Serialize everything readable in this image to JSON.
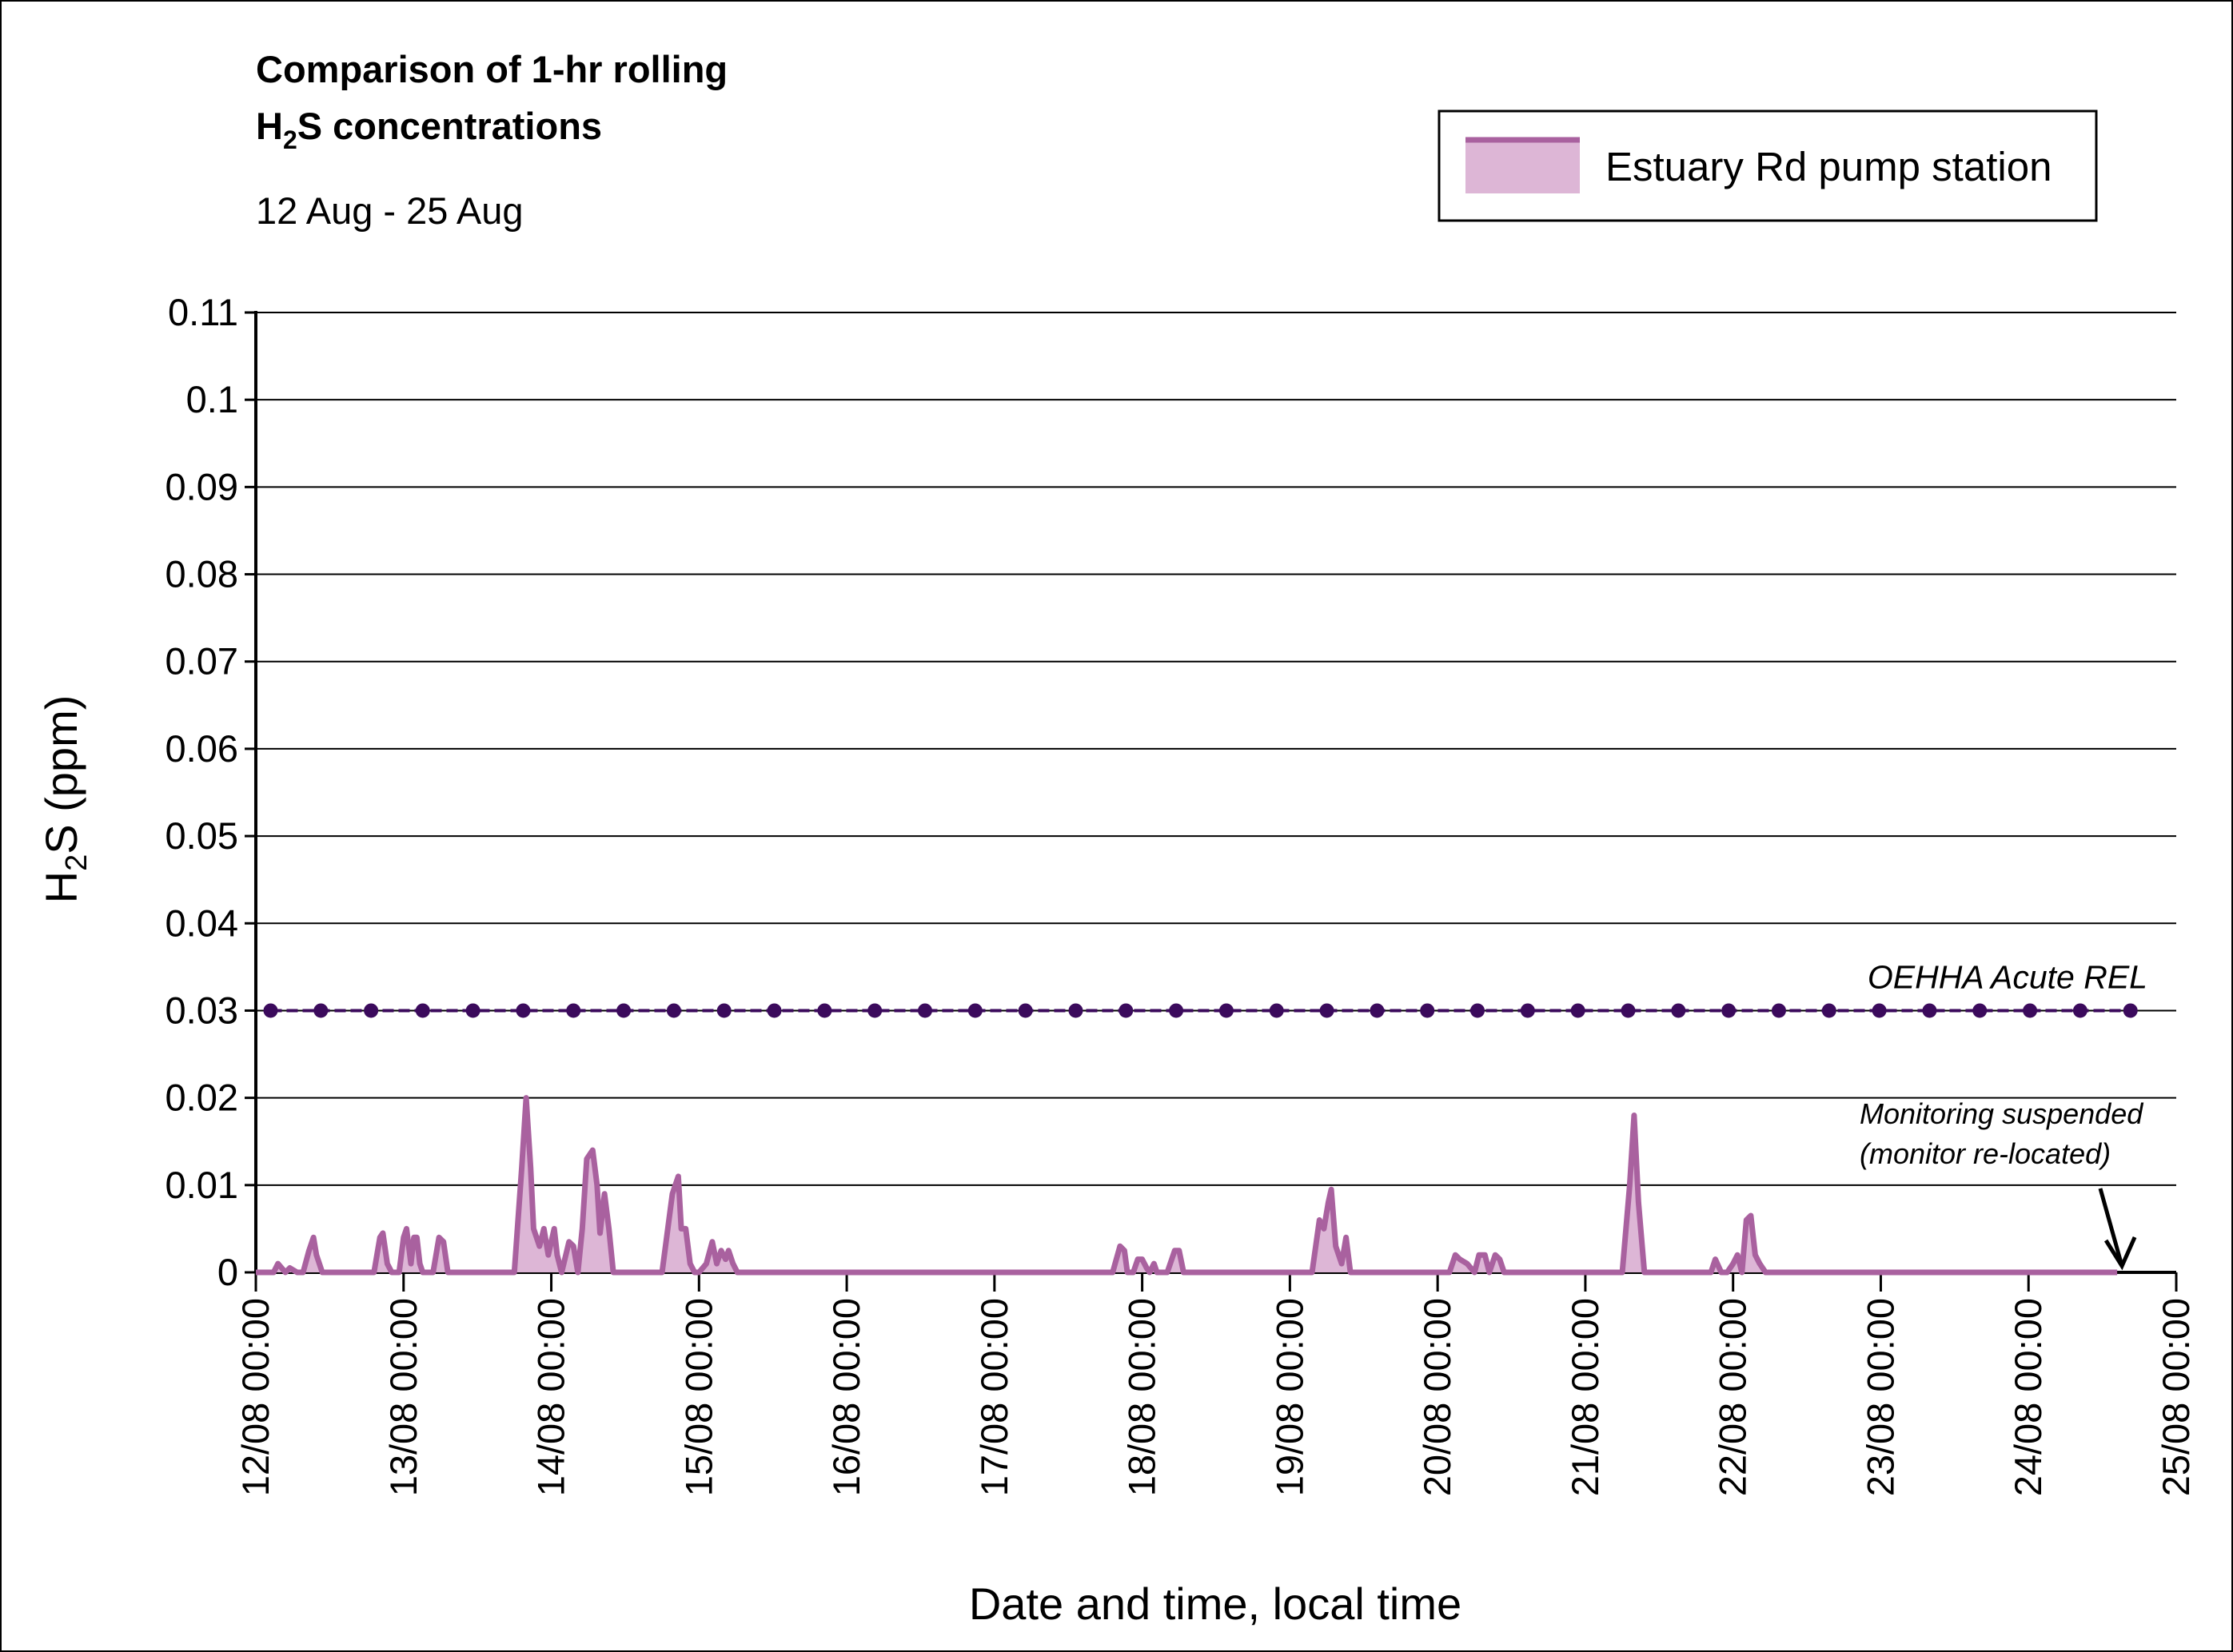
{
  "chart_data": {
    "type": "area",
    "title_line1": "Comparison of 1-hr rolling",
    "title_line2_prefix": "H",
    "title_line2_sub": "2",
    "title_line2_suffix": "S concentrations",
    "subtitle": "12 Aug - 25 Aug",
    "xlabel": "Date and time, local time",
    "ylabel_prefix": "H",
    "ylabel_sub": "2",
    "ylabel_suffix": "S (ppm)",
    "ylim": [
      0,
      0.11
    ],
    "yticks": [
      0,
      0.01,
      0.02,
      0.03,
      0.04,
      0.05,
      0.06,
      0.07,
      0.08,
      0.09,
      0.1,
      0.11
    ],
    "ytick_labels": [
      "0",
      "0.01",
      "0.02",
      "0.03",
      "0.04",
      "0.05",
      "0.06",
      "0.07",
      "0.08",
      "0.09",
      "0.1",
      "0.11"
    ],
    "xlim_days": [
      12,
      25
    ],
    "xtick_labels": [
      "12/08 00:00",
      "13/08 00:00",
      "14/08 00:00",
      "15/08 00:00",
      "16/08 00:00",
      "17/08 00:00",
      "18/08 00:00",
      "19/08 00:00",
      "20/08 00:00",
      "21/08 00:00",
      "22/08 00:00",
      "23/08 00:00",
      "24/08 00:00",
      "25/08 00:00"
    ],
    "grid": true,
    "legend_position": "top-right",
    "series": [
      {
        "name": "Estuary Rd pump station",
        "color": "#a9619f",
        "fill": "#ddb6d6",
        "x_days": [
          12.0,
          12.12,
          12.15,
          12.2,
          12.23,
          12.28,
          12.32,
          12.36,
          12.39,
          12.41,
          12.45,
          12.8,
          12.84,
          12.86,
          12.89,
          12.92,
          12.97,
          13.0,
          13.02,
          13.05,
          13.07,
          13.09,
          13.11,
          13.13,
          13.2,
          13.24,
          13.27,
          13.3,
          13.33,
          13.75,
          13.8,
          13.83,
          13.86,
          13.88,
          13.92,
          13.95,
          13.98,
          14.02,
          14.04,
          14.07,
          14.12,
          14.15,
          14.18,
          14.21,
          14.24,
          14.28,
          14.31,
          14.33,
          14.36,
          14.39,
          14.42,
          14.45,
          14.75,
          14.82,
          14.86,
          14.88,
          14.91,
          14.94,
          14.97,
          15.0,
          15.05,
          15.09,
          15.12,
          15.15,
          15.18,
          15.2,
          15.23,
          15.26,
          15.3,
          17.8,
          17.85,
          17.88,
          17.9,
          17.94,
          17.97,
          18.0,
          18.03,
          18.05,
          18.08,
          18.1,
          18.17,
          18.22,
          18.25,
          18.28,
          19.15,
          19.2,
          19.23,
          19.26,
          19.28,
          19.31,
          19.35,
          19.38,
          19.41,
          20.08,
          20.12,
          20.15,
          20.2,
          20.25,
          20.28,
          20.32,
          20.35,
          20.39,
          20.42,
          20.45,
          21.25,
          21.3,
          21.33,
          21.36,
          21.4,
          21.85,
          21.88,
          21.92,
          21.96,
          22.0,
          22.03,
          22.06,
          22.09,
          22.12,
          22.15,
          22.18,
          22.22,
          24.6
        ],
        "values": [
          0,
          0,
          0.001,
          0,
          0.0005,
          0,
          0,
          0.0025,
          0.004,
          0.002,
          0,
          0,
          0.004,
          0.0045,
          0.001,
          0,
          0,
          0.004,
          0.005,
          0.001,
          0.004,
          0.004,
          0.001,
          0,
          0,
          0.004,
          0.0035,
          0,
          0,
          0,
          0.012,
          0.02,
          0.012,
          0.005,
          0.003,
          0.005,
          0.002,
          0.005,
          0.002,
          0,
          0.0035,
          0.003,
          0,
          0.005,
          0.013,
          0.014,
          0.01,
          0.0045,
          0.009,
          0.005,
          0,
          0,
          0,
          0.009,
          0.011,
          0.005,
          0.005,
          0.001,
          0,
          0,
          0.001,
          0.0035,
          0.001,
          0.0025,
          0.0015,
          0.0025,
          0.001,
          0,
          0,
          0,
          0.003,
          0.0025,
          0,
          0,
          0.0015,
          0.0015,
          0.0005,
          0,
          0.001,
          0,
          0,
          0.0025,
          0.0025,
          0,
          0,
          0.006,
          0.005,
          0.008,
          0.0095,
          0.003,
          0.001,
          0.004,
          0,
          0,
          0.002,
          0.0015,
          0.001,
          0,
          0.002,
          0.002,
          0,
          0.002,
          0.0015,
          0,
          0,
          0.01,
          0.018,
          0.008,
          0,
          0,
          0.0015,
          0,
          0,
          0.001,
          0.002,
          0,
          0.006,
          0.0065,
          0.002,
          0.001,
          0,
          0
        ]
      }
    ],
    "reference_line": {
      "label": "OEHHA Acute REL",
      "value": 0.03,
      "color": "#3b0a5c",
      "marker_x_days": [
        12.1,
        12.44,
        12.78,
        13.13,
        13.47,
        13.81,
        14.15,
        14.49,
        14.83,
        15.17,
        15.51,
        15.85,
        16.19,
        16.53,
        16.87,
        17.21,
        17.55,
        17.89,
        18.23,
        18.57,
        18.91,
        19.25,
        19.59,
        19.93,
        20.27,
        20.61,
        20.95,
        21.29,
        21.63,
        21.97,
        22.31,
        22.65,
        22.99,
        23.33,
        23.67,
        24.01,
        24.35,
        24.69
      ]
    },
    "annotation": {
      "line1": "Monitoring suspended",
      "line2": "(monitor re-located)",
      "arrow_x_day": 24.6,
      "arrow_value": 0
    }
  }
}
